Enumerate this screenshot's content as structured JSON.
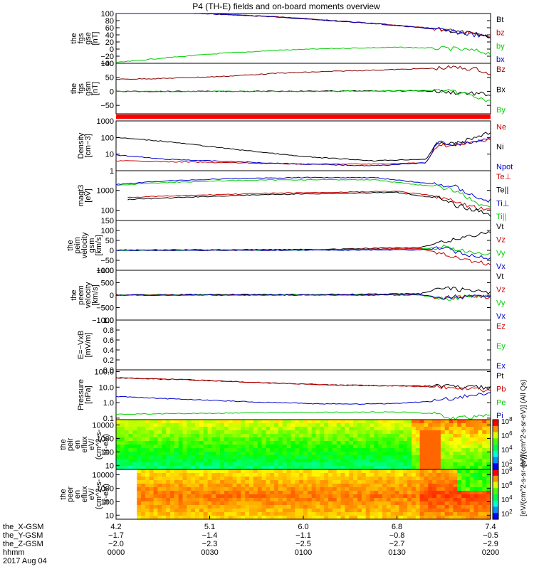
{
  "title": "P4 (TH-E) fields and on-board moments overview",
  "chart_data": [
    {
      "id": "fgs-gse",
      "type": "line",
      "ylabel": [
        "the",
        "fgs",
        "gse",
        "[nT]"
      ],
      "ylim": [
        -40,
        100
      ],
      "scale": "linear",
      "ticks": [
        "100",
        "80",
        "60",
        "40",
        "20",
        "0",
        "−20",
        "−40"
      ],
      "series": [
        {
          "name": "Bt",
          "color": "#000000",
          "x": [
            4.2,
            4.8,
            5.6,
            6.4,
            6.9,
            7.2,
            7.4
          ],
          "y": [
            111,
            102,
            90,
            72,
            58,
            45,
            35
          ]
        },
        {
          "name": "bz",
          "color": "#cc0000",
          "x": [
            4.2,
            4.8,
            5.6,
            6.4,
            6.9,
            7.2,
            7.4
          ],
          "y": [
            111,
            102,
            90,
            72,
            58,
            45,
            35
          ]
        },
        {
          "name": "by",
          "color": "#00cc00",
          "x": [
            4.2,
            4.6,
            5.1,
            5.6,
            6.1,
            6.6,
            6.9,
            7.1,
            7.3,
            7.4
          ],
          "y": [
            -38,
            -25,
            -12,
            -3,
            2,
            5,
            3,
            0,
            -6,
            -12
          ]
        },
        {
          "name": "bx",
          "color": "#0000cc",
          "x": [
            4.2,
            4.8,
            5.6,
            6.4,
            6.9,
            7.2,
            7.4
          ],
          "y": [
            111,
            102,
            90,
            72,
            57,
            43,
            33
          ]
        }
      ]
    },
    {
      "id": "fgs-gsm",
      "type": "line",
      "ylabel": [
        "the",
        "fgs",
        "gsm",
        "[nT]"
      ],
      "ylim": [
        -80,
        100
      ],
      "scale": "linear",
      "ticks": [
        "100",
        "50",
        "0",
        "−50"
      ],
      "series": [
        {
          "name": "Bz",
          "color": "#880000",
          "x": [
            4.2,
            4.6,
            5.1,
            5.6,
            6.1,
            6.6,
            6.9,
            7.1,
            7.3,
            7.4
          ],
          "y": [
            43,
            46,
            53,
            65,
            72,
            78,
            82,
            85,
            78,
            60
          ]
        },
        {
          "name": "Bx",
          "color": "#000000",
          "x": [
            4.2,
            5.0,
            6.0,
            6.8,
            7.0,
            7.2,
            7.4
          ],
          "y": [
            0,
            0,
            1,
            2,
            -2,
            -6,
            -12
          ]
        },
        {
          "name": "By",
          "color": "#00cc00",
          "x": [
            4.2,
            5.0,
            6.0,
            6.8,
            7.0,
            7.2,
            7.4
          ],
          "y": [
            -1,
            0,
            0,
            3,
            2,
            -10,
            -40
          ]
        }
      ]
    },
    {
      "id": "density",
      "type": "line",
      "ylabel": [
        "Density",
        "[cm−3]"
      ],
      "ylim": [
        1,
        1000
      ],
      "scale": "log",
      "ticks": [
        "1000",
        "100",
        "10",
        "1"
      ],
      "series": [
        {
          "name": "Ne",
          "color": "#cc0000",
          "x": [
            4.2,
            4.6,
            5.2,
            5.8,
            6.4,
            6.85,
            6.95,
            7.1,
            7.3,
            7.4
          ],
          "y": [
            4,
            3.5,
            3,
            2.5,
            2.5,
            3,
            40,
            30,
            60,
            100
          ]
        },
        {
          "name": "Ni",
          "color": "#000000",
          "x": [
            4.2,
            4.6,
            5.2,
            5.8,
            6.4,
            6.85,
            6.95,
            7.1,
            7.3,
            7.4
          ],
          "y": [
            100,
            60,
            20,
            7,
            4,
            5,
            50,
            40,
            120,
            200
          ]
        },
        {
          "name": "Npot",
          "color": "#0000cc",
          "x": [
            4.2,
            4.6,
            5.2,
            5.8,
            6.4,
            6.85,
            6.95,
            7.1,
            7.3,
            7.4
          ],
          "y": [
            9,
            5,
            3.5,
            2.5,
            2,
            3,
            50,
            40,
            60,
            90
          ]
        }
      ]
    },
    {
      "id": "temperature",
      "type": "line",
      "ylabel": [
        "magt3",
        "[eV]"
      ],
      "ylim": [
        30,
        10000
      ],
      "scale": "log",
      "ticks": [
        "1000",
        "100"
      ],
      "series": [
        {
          "name": "Te⊥",
          "color": "#cc0000",
          "x": [
            4.3,
            4.8,
            5.4,
            6.0,
            6.6,
            6.95,
            7.1,
            7.3,
            7.4
          ],
          "y": [
            450,
            550,
            700,
            800,
            900,
            500,
            250,
            120,
            100
          ]
        },
        {
          "name": "Te||",
          "color": "#000000",
          "x": [
            4.3,
            4.8,
            5.4,
            6.0,
            6.6,
            6.95,
            7.1,
            7.3,
            7.4
          ],
          "y": [
            350,
            450,
            600,
            700,
            800,
            400,
            180,
            90,
            60
          ]
        },
        {
          "name": "Ti⊥",
          "color": "#0000cc",
          "x": [
            4.2,
            4.6,
            5.2,
            5.8,
            6.4,
            6.95,
            7.1,
            7.3,
            7.4
          ],
          "y": [
            2000,
            3000,
            4000,
            4500,
            4500,
            2000,
            1500,
            400,
            300
          ]
        },
        {
          "name": "Ti||",
          "color": "#00cc00",
          "x": [
            4.2,
            4.6,
            5.2,
            5.8,
            6.4,
            6.95,
            7.1,
            7.3,
            7.4
          ],
          "y": [
            1800,
            2500,
            3200,
            3500,
            3500,
            1500,
            1000,
            200,
            150
          ]
        }
      ]
    },
    {
      "id": "peim-velocity",
      "type": "line",
      "ylabel": [
        "the",
        "peim",
        "velocity",
        "gsm",
        "[km/s]"
      ],
      "ylim": [
        -100,
        150
      ],
      "scale": "linear",
      "ticks": [
        "150",
        "100",
        "50",
        "0",
        "−50",
        "−100"
      ],
      "series": [
        {
          "name": "Vt",
          "color": "#000000",
          "x": [
            4.2,
            5.0,
            6.0,
            6.8,
            7.0,
            7.2,
            7.4
          ],
          "y": [
            2,
            3,
            5,
            15,
            40,
            70,
            95
          ]
        },
        {
          "name": "Vz",
          "color": "#cc0000",
          "x": [
            4.2,
            5.0,
            6.0,
            6.8,
            7.0,
            7.2,
            7.4
          ],
          "y": [
            0,
            1,
            3,
            10,
            -20,
            -50,
            -70
          ]
        },
        {
          "name": "Vy",
          "color": "#00cc00",
          "x": [
            4.2,
            5.0,
            6.0,
            6.8,
            7.0,
            7.2,
            7.4
          ],
          "y": [
            0,
            1,
            2,
            5,
            20,
            -10,
            -20
          ]
        },
        {
          "name": "Vx",
          "color": "#0000cc",
          "x": [
            4.2,
            5.0,
            6.0,
            6.8,
            7.0,
            7.2,
            7.4
          ],
          "y": [
            0,
            0,
            1,
            3,
            10,
            -20,
            -40
          ]
        }
      ]
    },
    {
      "id": "peem-velocity",
      "type": "line",
      "ylabel": [
        "the",
        "peem",
        "velocity",
        "[km/s]"
      ],
      "ylim": [
        -1000,
        1000
      ],
      "scale": "linear",
      "ticks": [
        "1000",
        "500",
        "0",
        "−500",
        "−1000"
      ],
      "series": [
        {
          "name": "Vt",
          "color": "#000000",
          "x": [
            4.2,
            5.0,
            6.0,
            6.8,
            7.0,
            7.2,
            7.4
          ],
          "y": [
            20,
            25,
            30,
            60,
            300,
            200,
            100
          ]
        },
        {
          "name": "Vz",
          "color": "#cc0000",
          "x": [
            4.2,
            5.0,
            6.0,
            6.8,
            7.0,
            7.2,
            7.4
          ],
          "y": [
            0,
            5,
            10,
            20,
            -100,
            -80,
            -50
          ]
        },
        {
          "name": "Vy",
          "color": "#00cc00",
          "x": [
            4.2,
            5.0,
            6.0,
            6.8,
            7.0,
            7.2,
            7.4
          ],
          "y": [
            0,
            5,
            5,
            10,
            -150,
            -60,
            -40
          ]
        },
        {
          "name": "Vx",
          "color": "#0000cc",
          "x": [
            4.2,
            5.0,
            6.0,
            6.8,
            7.0,
            7.2,
            7.4
          ],
          "y": [
            0,
            3,
            5,
            10,
            -80,
            -40,
            -30
          ]
        }
      ]
    },
    {
      "id": "efield",
      "type": "line",
      "ylabel": [
        "E=−VxB",
        "[mV/m]"
      ],
      "ylim": [
        0,
        1
      ],
      "scale": "linear",
      "ticks": [
        "1.0",
        "0.8",
        "0.6",
        "0.4",
        "0.2",
        "0.0"
      ],
      "series": [
        {
          "name": "Ez",
          "color": "#cc0000",
          "x": [],
          "y": []
        },
        {
          "name": "Ey",
          "color": "#00cc00",
          "x": [],
          "y": []
        },
        {
          "name": "Ex",
          "color": "#0000cc",
          "x": [],
          "y": []
        }
      ]
    },
    {
      "id": "pressure",
      "type": "line",
      "ylabel": [
        "Pressure",
        "[nPa]"
      ],
      "ylim": [
        0.08,
        130
      ],
      "scale": "log",
      "ticks": [
        "100.0",
        "10.0",
        "1.0",
        "0.1"
      ],
      "series": [
        {
          "name": "Pt",
          "color": "#000000",
          "x": [
            4.2,
            4.8,
            5.4,
            6.0,
            6.6,
            7.0,
            7.4
          ],
          "y": [
            40,
            30,
            20,
            14,
            12,
            11,
            9
          ]
        },
        {
          "name": "Pb",
          "color": "#cc0000",
          "x": [
            4.2,
            4.8,
            5.4,
            6.0,
            6.6,
            7.0,
            7.4
          ],
          "y": [
            40,
            30,
            20,
            14,
            12,
            10,
            6
          ]
        },
        {
          "name": "Pe",
          "color": "#00cc00",
          "x": [
            4.2,
            4.8,
            5.4,
            6.0,
            6.6,
            6.9,
            7.1,
            7.4
          ],
          "y": [
            0.18,
            0.2,
            0.22,
            0.24,
            0.25,
            0.2,
            0.1,
            0.15
          ]
        },
        {
          "name": "Pi",
          "color": "#0000cc",
          "x": [
            4.2,
            4.8,
            5.4,
            5.9,
            6.3,
            6.6,
            6.9,
            7.1,
            7.3,
            7.4
          ],
          "y": [
            2.5,
            1.6,
            1.1,
            0.85,
            0.8,
            0.9,
            1.2,
            2.0,
            3.5,
            5.0
          ]
        }
      ]
    },
    {
      "id": "peir-eflux",
      "type": "heatmap",
      "ylabel": [
        "the",
        "peir",
        "en",
        "eflux",
        "eV/",
        "(cm^2-s-",
        "sr-eV)"
      ],
      "ylim": [
        5,
        25000
      ],
      "scale": "log",
      "ticks": [
        "10000",
        "1000",
        "100",
        "10"
      ],
      "colorbar": {
        "min_exp": 2,
        "max_exp": 8,
        "ticks": [
          "10^8",
          "10^6",
          "10^4",
          "10^2"
        ],
        "label": "[eV/(cm^2-s-sr-eV)] (All Qs)"
      }
    },
    {
      "id": "peer-eflux",
      "type": "heatmap",
      "ylabel": [
        "the",
        "peer",
        "en",
        "eflux",
        "eV/",
        "(cm^2-s-",
        "sr-eV)"
      ],
      "ylim": [
        5,
        25000
      ],
      "scale": "log",
      "ticks": [
        "10000",
        "1000",
        "100",
        "10"
      ],
      "colorbar": {
        "min_exp": 2,
        "max_exp": 8,
        "ticks": [
          "10^8",
          "10^6",
          "10^4",
          "10^2"
        ],
        "label": "[eV/(cm^2-s-sr-eV)]"
      }
    }
  ],
  "xaxis": {
    "xlim": [
      4.2,
      7.4
    ],
    "rows": [
      {
        "label": "the_X-GSM",
        "values": [
          "4.2",
          "5.1",
          "6.0",
          "6.8",
          "7.4"
        ]
      },
      {
        "label": "the_Y-GSM",
        "values": [
          "−1.7",
          "−1.4",
          "−1.1",
          "−0.8",
          "−0.5"
        ]
      },
      {
        "label": "the_Z-GSM",
        "values": [
          "−2.0",
          "−2.3",
          "−2.5",
          "−2.7",
          "−2.9"
        ]
      },
      {
        "label": "hhmm",
        "values": [
          "0000",
          "0030",
          "0100",
          "0130",
          "0200"
        ]
      }
    ],
    "date": "2017 Aug 04"
  }
}
